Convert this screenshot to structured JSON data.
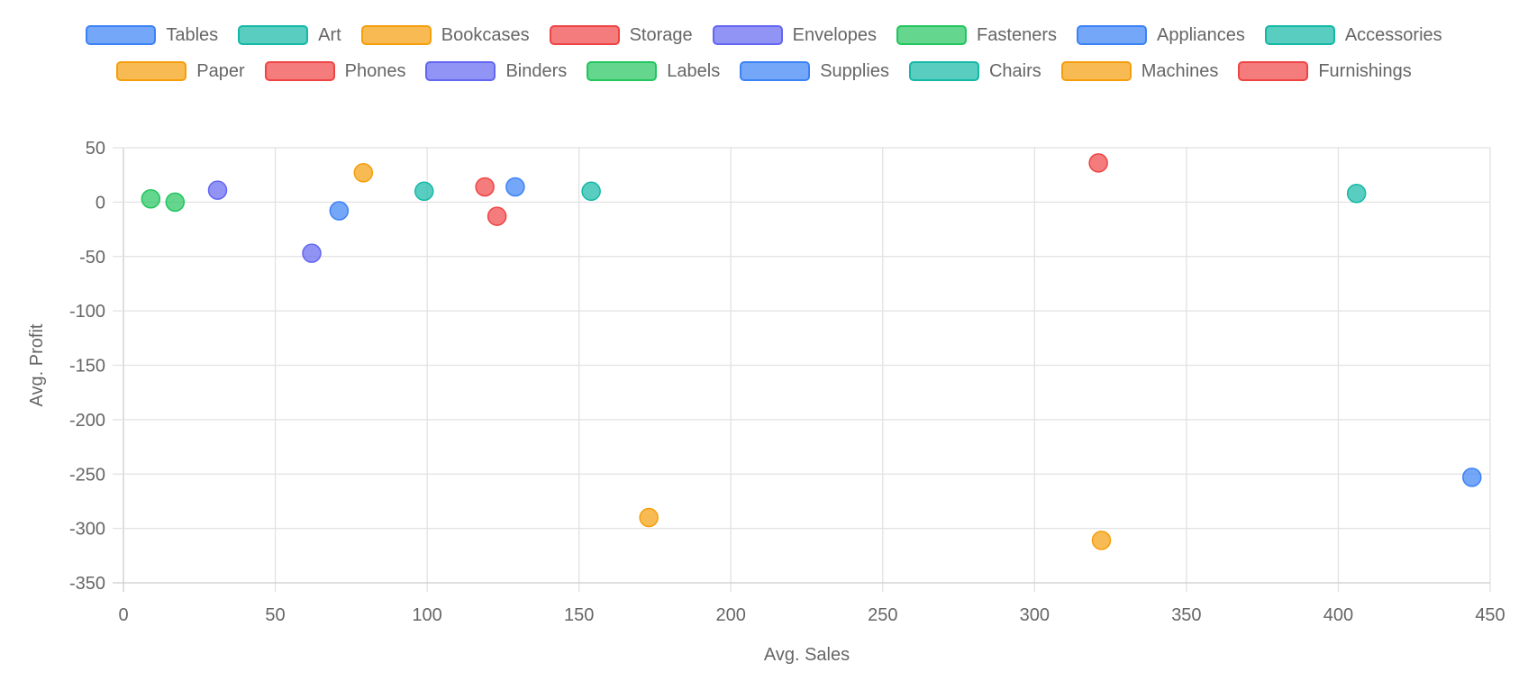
{
  "chart_data": {
    "type": "scatter",
    "xlabel": "Avg. Sales",
    "ylabel": "Avg. Profit",
    "xlim": [
      0,
      450
    ],
    "ylim": [
      -350,
      50
    ],
    "xticks": [
      "0",
      "50",
      "100",
      "150",
      "200",
      "250",
      "300",
      "350",
      "400",
      "450"
    ],
    "yticks": [
      "50",
      "0",
      "-50",
      "-100",
      "-150",
      "-200",
      "-250",
      "-300",
      "-350"
    ],
    "grid": true,
    "legend_position": "top",
    "series": [
      {
        "name": "Tables",
        "color": "#3b82f6",
        "x": 444,
        "y": -253
      },
      {
        "name": "Art",
        "color": "#14b8a6",
        "x": 99,
        "y": 10
      },
      {
        "name": "Bookcases",
        "color": "#f59e0b",
        "x": 322,
        "y": -311
      },
      {
        "name": "Storage",
        "color": "#ef4444",
        "x": 119,
        "y": 14
      },
      {
        "name": "Envelopes",
        "color": "#6366f1",
        "x": 62,
        "y": -47
      },
      {
        "name": "Fasteners",
        "color": "#22c55e",
        "x": 9,
        "y": 3
      },
      {
        "name": "Appliances",
        "color": "#3b82f6",
        "x": 129,
        "y": 14
      },
      {
        "name": "Accessories",
        "color": "#14b8a6",
        "x": 154,
        "y": 10
      },
      {
        "name": "Paper",
        "color": "#f59e0b",
        "x": 79,
        "y": 27
      },
      {
        "name": "Phones",
        "color": "#ef4444",
        "x": 321,
        "y": 36
      },
      {
        "name": "Binders",
        "color": "#6366f1",
        "x": 31,
        "y": 11
      },
      {
        "name": "Labels",
        "color": "#22c55e",
        "x": 17,
        "y": 0
      },
      {
        "name": "Supplies",
        "color": "#3b82f6",
        "x": 71,
        "y": -8
      },
      {
        "name": "Chairs",
        "color": "#14b8a6",
        "x": 406,
        "y": 8
      },
      {
        "name": "Machines",
        "color": "#f59e0b",
        "x": 173,
        "y": -290
      },
      {
        "name": "Furnishings",
        "color": "#ef4444",
        "x": 123,
        "y": -13
      }
    ]
  }
}
